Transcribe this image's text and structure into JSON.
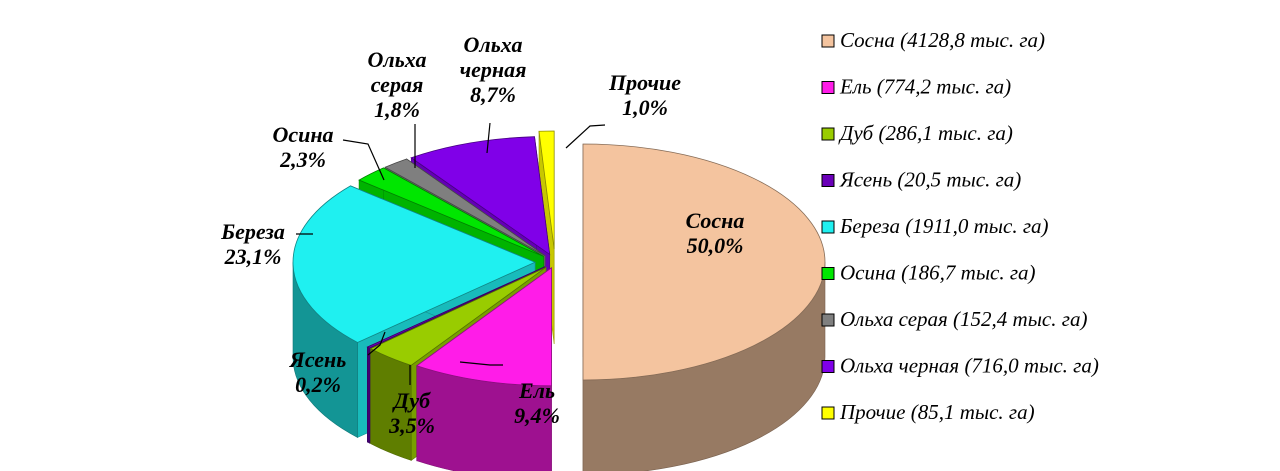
{
  "chart_data": {
    "type": "pie",
    "slices": [
      {
        "key": "sosna",
        "name": "Сосна",
        "percent": 50.0,
        "percent_label": "50,0%",
        "legend": "Сосна (4128,8 тыс. га)",
        "area_kha": 4128.8,
        "color": "#F4C49F"
      },
      {
        "key": "el",
        "name": "Ель",
        "percent": 9.4,
        "percent_label": "9,4%",
        "legend": "Ель (774,2 тыс. га)",
        "area_kha": 774.2,
        "color": "#FF1CE8"
      },
      {
        "key": "dub",
        "name": "Дуб",
        "percent": 3.5,
        "percent_label": "3,5%",
        "legend": "Дуб (286,1 тыс. га)",
        "area_kha": 286.1,
        "color": "#99CC00"
      },
      {
        "key": "yasen",
        "name": "Ясень",
        "percent": 0.2,
        "percent_label": "0,2%",
        "legend": "Ясень (20,5 тыс. га)",
        "area_kha": 20.5,
        "color": "#6A00B8"
      },
      {
        "key": "bereza",
        "name": "Береза",
        "percent": 23.1,
        "percent_label": "23,1%",
        "legend": "Береза (1911,0 тыс. га)",
        "area_kha": 1911.0,
        "color": "#1FF0F0"
      },
      {
        "key": "osina",
        "name": "Осина",
        "percent": 2.3,
        "percent_label": "2,3%",
        "legend": "Осина (186,7 тыс. га)",
        "area_kha": 186.7,
        "color": "#00E600"
      },
      {
        "key": "olkha_seraya",
        "name": "Ольха серая",
        "percent": 1.8,
        "percent_label": "1,8%",
        "legend": "Ольха серая (152,4 тыс. га)",
        "area_kha": 152.4,
        "color": "#7F7F7F"
      },
      {
        "key": "olkha_chernaya",
        "name": "Ольха черная",
        "percent": 8.7,
        "percent_label": "8,7%",
        "legend": "Ольха черная (716,0 тыс. га)",
        "area_kha": 716.0,
        "color": "#8000E8"
      },
      {
        "key": "prochie",
        "name": "Прочие",
        "percent": 1.0,
        "percent_label": "1,0%",
        "legend": "Прочие (85,1 тыс. га)",
        "area_kha": 85.1,
        "color": "#FFFF00"
      }
    ],
    "labels": {
      "sosna": [
        "Сосна",
        "50,0%"
      ],
      "el": [
        "Ель",
        "9,4%"
      ],
      "dub": [
        "Дуб",
        "3,5%"
      ],
      "yasen": [
        "Ясень",
        "0,2%"
      ],
      "bereza": [
        "Береза",
        "23,1%"
      ],
      "osina": [
        "Осина",
        "2,3%"
      ],
      "olkha_seraya": [
        "Ольха",
        "серая",
        "1,8%"
      ],
      "olkha_chernaya": [
        "Ольха",
        "черная",
        "8,7%"
      ],
      "prochie": [
        "Прочие",
        "1,0%"
      ]
    },
    "legend_position": "right",
    "style": "3d-exploded"
  }
}
